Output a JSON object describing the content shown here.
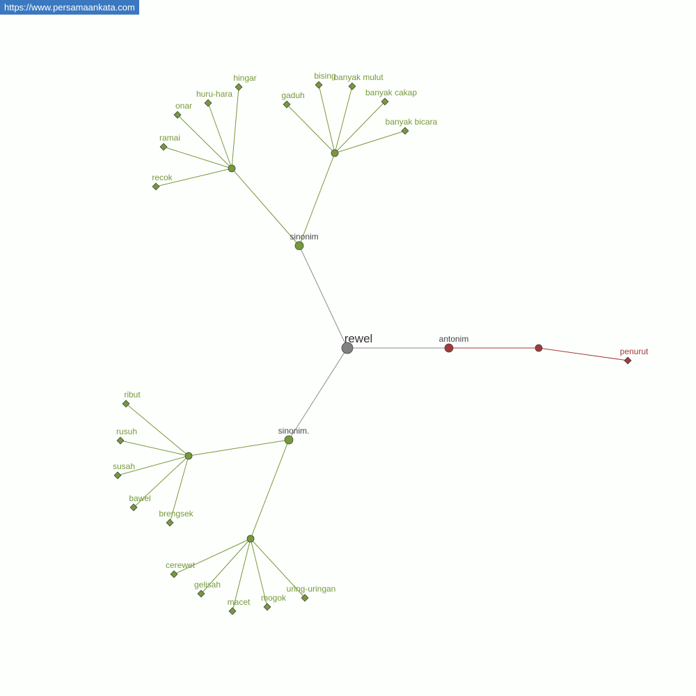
{
  "site_label": "https://www.persamaankata.com",
  "colors": {
    "root": "#808080",
    "synonym": "#76993a",
    "antonym": "#a33a3a",
    "category_text": "#444444",
    "edge_root": "#8a8a8a"
  },
  "graph": {
    "root": {
      "id": "root",
      "label": "rewel"
    },
    "nodes": [
      {
        "id": "sin1",
        "label": "sinonim",
        "type": "category"
      },
      {
        "id": "h1",
        "label": "",
        "type": "hub",
        "group": "syn"
      },
      {
        "id": "hingar",
        "label": "hingar",
        "type": "leaf",
        "group": "syn"
      },
      {
        "id": "huruhara",
        "label": "huru-hara",
        "type": "leaf",
        "group": "syn"
      },
      {
        "id": "onar",
        "label": "onar",
        "type": "leaf",
        "group": "syn"
      },
      {
        "id": "ramai",
        "label": "ramai",
        "type": "leaf",
        "group": "syn"
      },
      {
        "id": "recok",
        "label": "recok",
        "type": "leaf",
        "group": "syn"
      },
      {
        "id": "h2",
        "label": "",
        "type": "hub",
        "group": "syn"
      },
      {
        "id": "gaduh",
        "label": "gaduh",
        "type": "leaf",
        "group": "syn"
      },
      {
        "id": "bising",
        "label": "bising",
        "type": "leaf",
        "group": "syn"
      },
      {
        "id": "bmulut",
        "label": "banyak mulut",
        "type": "leaf",
        "group": "syn"
      },
      {
        "id": "bcakap",
        "label": "banyak cakap",
        "type": "leaf",
        "group": "syn"
      },
      {
        "id": "bbicara",
        "label": "banyak bicara",
        "type": "leaf",
        "group": "syn"
      },
      {
        "id": "sin2",
        "label": "sinonim.",
        "type": "category"
      },
      {
        "id": "h3",
        "label": "",
        "type": "hub",
        "group": "syn"
      },
      {
        "id": "ribut",
        "label": "ribut",
        "type": "leaf",
        "group": "syn"
      },
      {
        "id": "rusuh",
        "label": "rusuh",
        "type": "leaf",
        "group": "syn"
      },
      {
        "id": "susah",
        "label": "susah",
        "type": "leaf",
        "group": "syn"
      },
      {
        "id": "bawel",
        "label": "bawel",
        "type": "leaf",
        "group": "syn"
      },
      {
        "id": "brengsek",
        "label": "brengsek",
        "type": "leaf",
        "group": "syn"
      },
      {
        "id": "h4",
        "label": "",
        "type": "hub",
        "group": "syn"
      },
      {
        "id": "cerewet",
        "label": "cerewet",
        "type": "leaf",
        "group": "syn"
      },
      {
        "id": "gelisah",
        "label": "gelisah",
        "type": "leaf",
        "group": "syn"
      },
      {
        "id": "macet",
        "label": "macet",
        "type": "leaf",
        "group": "syn"
      },
      {
        "id": "mogok",
        "label": "mogok",
        "type": "leaf",
        "group": "syn"
      },
      {
        "id": "uring",
        "label": "uring-uringan",
        "type": "leaf",
        "group": "syn"
      },
      {
        "id": "ant",
        "label": "antonim",
        "type": "category",
        "group": "ant"
      },
      {
        "id": "h5",
        "label": "",
        "type": "hub",
        "group": "ant"
      },
      {
        "id": "penurut",
        "label": "penurut",
        "type": "leaf",
        "group": "ant"
      }
    ],
    "edges": [
      [
        "root",
        "sin1"
      ],
      [
        "root",
        "sin2"
      ],
      [
        "root",
        "ant"
      ],
      [
        "sin1",
        "h1"
      ],
      [
        "sin1",
        "h2"
      ],
      [
        "h1",
        "hingar"
      ],
      [
        "h1",
        "huruhara"
      ],
      [
        "h1",
        "onar"
      ],
      [
        "h1",
        "ramai"
      ],
      [
        "h1",
        "recok"
      ],
      [
        "h2",
        "gaduh"
      ],
      [
        "h2",
        "bising"
      ],
      [
        "h2",
        "bmulut"
      ],
      [
        "h2",
        "bcakap"
      ],
      [
        "h2",
        "bbicara"
      ],
      [
        "sin2",
        "h3"
      ],
      [
        "sin2",
        "h4"
      ],
      [
        "h3",
        "ribut"
      ],
      [
        "h3",
        "rusuh"
      ],
      [
        "h3",
        "susah"
      ],
      [
        "h3",
        "bawel"
      ],
      [
        "h3",
        "brengsek"
      ],
      [
        "h4",
        "cerewet"
      ],
      [
        "h4",
        "gelisah"
      ],
      [
        "h4",
        "macet"
      ],
      [
        "h4",
        "mogok"
      ],
      [
        "h4",
        "uring"
      ],
      [
        "ant",
        "h5"
      ],
      [
        "h5",
        "penurut"
      ]
    ]
  }
}
